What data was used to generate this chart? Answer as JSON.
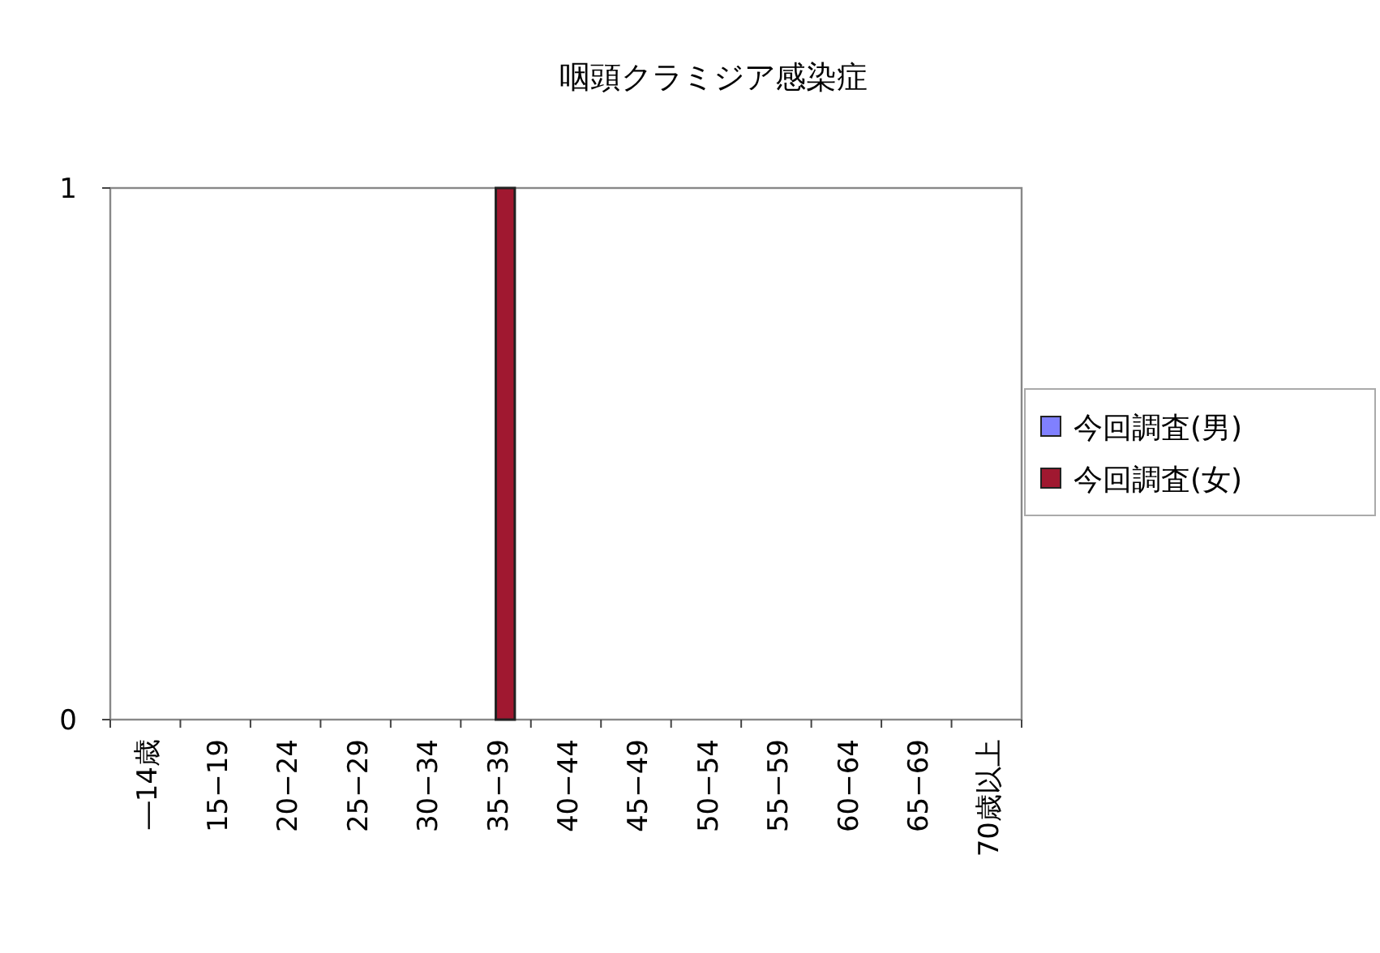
{
  "chart_data": {
    "type": "bar",
    "title": "咽頭クラミジア感染症",
    "categories": [
      "―14歳",
      "15−19",
      "20−24",
      "25−29",
      "30−34",
      "35−39",
      "40−44",
      "45−49",
      "50−54",
      "55−59",
      "60−64",
      "65−69",
      "70歳以上"
    ],
    "series": [
      {
        "name": "今回調査(男)",
        "color": "#8080ff",
        "values": [
          0,
          0,
          0,
          0,
          0,
          0,
          0,
          0,
          0,
          0,
          0,
          0,
          0
        ]
      },
      {
        "name": "今回調査(女)",
        "color": "#a01830",
        "values": [
          0,
          0,
          0,
          0,
          0,
          1,
          0,
          0,
          0,
          0,
          0,
          0,
          0
        ]
      }
    ],
    "ylim": [
      0,
      1
    ],
    "yticks": [
      0,
      1
    ],
    "legend": "right"
  }
}
